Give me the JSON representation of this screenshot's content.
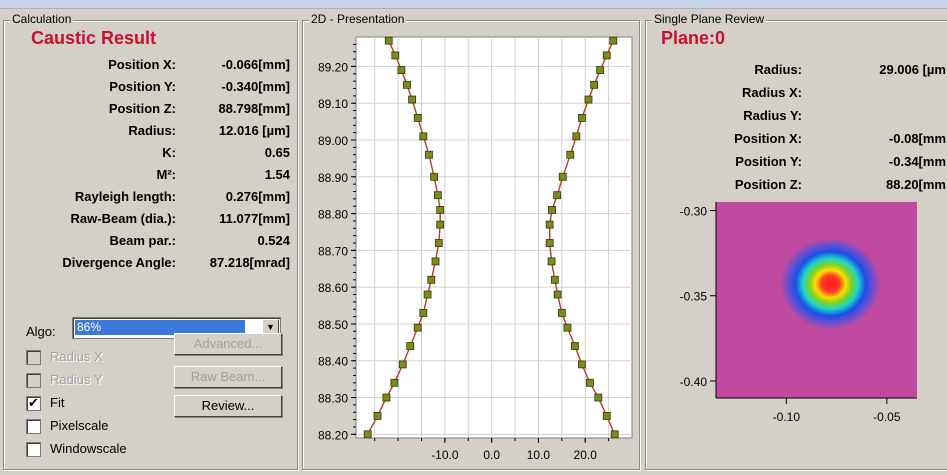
{
  "calculation": {
    "group_title": "Calculation",
    "section_title": "Caustic Result",
    "rows": [
      {
        "label": "Position X:",
        "value": "-0.066[mm]"
      },
      {
        "label": "Position Y:",
        "value": "-0.340[mm]"
      },
      {
        "label": "Position Z:",
        "value": "88.798[mm]"
      },
      {
        "label": "Radius:",
        "value": "12.016 [µm]"
      },
      {
        "label": "K:",
        "value": "0.65"
      },
      {
        "label": "M²:",
        "value": "1.54"
      },
      {
        "label": "Rayleigh length:",
        "value": "0.276[mm]"
      },
      {
        "label": "Raw-Beam (dia.):",
        "value": "11.077[mm]"
      },
      {
        "label": "Beam par.:",
        "value": "0.524"
      },
      {
        "label": "Divergence Angle:",
        "value": "87.218[mrad]"
      }
    ],
    "algo_label": "Algo:",
    "algo_value": "86%",
    "checkboxes": [
      {
        "label": "Radius X",
        "checked": false,
        "disabled": true
      },
      {
        "label": "Radius Y",
        "checked": false,
        "disabled": true
      },
      {
        "label": "Fit",
        "checked": true,
        "disabled": false
      },
      {
        "label": "Pixelscale",
        "checked": false,
        "disabled": false
      },
      {
        "label": "Windowscale",
        "checked": false,
        "disabled": false
      }
    ],
    "buttons": {
      "advanced": "Advanced...",
      "raw_beam": "Raw Beam...",
      "review": "Review..."
    }
  },
  "presentation": {
    "group_title": "2D - Presentation"
  },
  "review": {
    "group_title": "Single Plane Review",
    "section_title": "Plane:0",
    "rows": [
      {
        "label": "Radius:",
        "value": "29.006 [µm"
      },
      {
        "label": "Radius X:",
        "value": ""
      },
      {
        "label": "Radius Y:",
        "value": ""
      },
      {
        "label": "Position X:",
        "value": "-0.08[mm"
      },
      {
        "label": "Position Y:",
        "value": "-0.34[mm"
      },
      {
        "label": "Position Z:",
        "value": "88.20[mm"
      }
    ]
  },
  "chart_data": [
    {
      "type": "scatter",
      "title": "",
      "xlabel": "",
      "ylabel": "",
      "x_ticks": [
        "-10.0",
        "0.0",
        "10.0",
        "20.0"
      ],
      "y_ticks": [
        "88.20",
        "88.30",
        "88.40",
        "88.50",
        "88.60",
        "88.70",
        "88.80",
        "88.90",
        "89.00",
        "89.10",
        "89.20"
      ],
      "xlim": [
        -29,
        30
      ],
      "ylim": [
        88.19,
        89.28
      ],
      "grid": true,
      "fit_line_color": "#c0392b",
      "marker_color": "#7c8a1e",
      "series": [
        {
          "points": [
            [
              -22.0,
              89.27
            ],
            [
              -20.6,
              89.23
            ],
            [
              -19.3,
              89.19
            ],
            [
              -18.1,
              89.15
            ],
            [
              -17.0,
              89.11
            ],
            [
              -15.8,
              89.06
            ],
            [
              -14.6,
              89.01
            ],
            [
              -13.4,
              88.96
            ],
            [
              -12.3,
              88.9
            ],
            [
              -11.5,
              88.85
            ],
            [
              -11.0,
              88.81
            ],
            [
              -11.0,
              88.77
            ],
            [
              -11.3,
              88.72
            ],
            [
              -12.0,
              88.67
            ],
            [
              -12.9,
              88.62
            ],
            [
              -13.7,
              88.58
            ],
            [
              -14.6,
              88.53
            ],
            [
              -15.8,
              88.49
            ],
            [
              -17.4,
              88.44
            ],
            [
              -19.0,
              88.39
            ],
            [
              -20.8,
              88.34
            ],
            [
              -22.5,
              88.3
            ],
            [
              -24.4,
              88.25
            ],
            [
              -26.5,
              88.2
            ]
          ]
        },
        {
          "points": [
            [
              26.0,
              89.27
            ],
            [
              24.6,
              89.23
            ],
            [
              23.2,
              89.19
            ],
            [
              21.9,
              89.15
            ],
            [
              20.7,
              89.11
            ],
            [
              19.3,
              89.06
            ],
            [
              18.1,
              89.01
            ],
            [
              16.8,
              88.96
            ],
            [
              15.2,
              88.9
            ],
            [
              14.0,
              88.85
            ],
            [
              12.9,
              88.81
            ],
            [
              12.4,
              88.77
            ],
            [
              12.4,
              88.72
            ],
            [
              12.8,
              88.67
            ],
            [
              13.5,
              88.62
            ],
            [
              14.1,
              88.58
            ],
            [
              15.0,
              88.53
            ],
            [
              16.2,
              88.49
            ],
            [
              17.8,
              88.44
            ],
            [
              19.3,
              88.39
            ],
            [
              21.0,
              88.34
            ],
            [
              22.8,
              88.3
            ],
            [
              24.6,
              88.25
            ],
            [
              26.3,
              88.2
            ]
          ]
        }
      ]
    },
    {
      "type": "heatmap",
      "title": "",
      "x_ticks": [
        "-0.10",
        "-0.05"
      ],
      "y_ticks": [
        "-0.30",
        "-0.35",
        "-0.40"
      ],
      "xlim": [
        -0.135,
        -0.035
      ],
      "ylim": [
        -0.41,
        -0.295
      ],
      "center": [
        -0.078,
        -0.343
      ],
      "background_color": "#c04aa0"
    }
  ]
}
